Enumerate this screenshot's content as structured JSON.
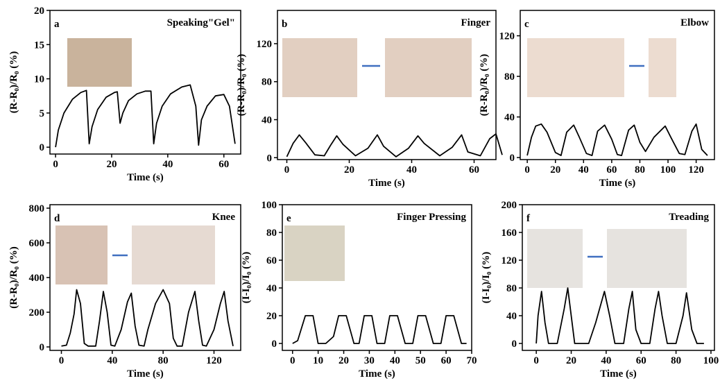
{
  "chart_data": [
    {
      "type": "line",
      "panel": "a",
      "title": "Speaking\"Gel\"",
      "xlabel": "Time (s)",
      "ylabel": "(R-R₀)/R₀ (%)",
      "color": "#000000",
      "x": [
        0,
        1,
        3,
        6,
        9,
        11,
        12,
        13,
        15,
        18,
        21,
        22,
        23,
        24,
        26,
        29,
        32,
        34,
        35,
        36,
        38,
        41,
        45,
        48,
        50,
        51,
        52,
        54,
        57,
        60,
        62,
        64
      ],
      "values": [
        0,
        2.5,
        5,
        7,
        8,
        8.3,
        0.5,
        3,
        5.5,
        7.3,
        8,
        8.1,
        3.5,
        5,
        6.8,
        7.8,
        8.2,
        8.2,
        0.5,
        3.5,
        6,
        7.8,
        8.8,
        9.1,
        6,
        0.3,
        4,
        6,
        7.5,
        7.7,
        6,
        0.5
      ],
      "xlim": [
        -2,
        66
      ],
      "ylim": [
        -1,
        20
      ],
      "xticks": [
        0,
        20,
        40,
        60
      ],
      "yticks": [
        0,
        5,
        10,
        15,
        20
      ]
    },
    {
      "type": "line",
      "panel": "b",
      "title": "Finger",
      "xlabel": "Time (s)",
      "ylabel": "(R-R₀)/R₀ (%)",
      "color": "#000000",
      "x": [
        0,
        2,
        4,
        6,
        9,
        12,
        14,
        16,
        18,
        22,
        26,
        29,
        31,
        35,
        39,
        42,
        44,
        49,
        53,
        56,
        58,
        62,
        65,
        67,
        69
      ],
      "values": [
        1,
        15,
        24,
        16,
        3,
        2,
        13,
        23,
        14,
        2,
        10,
        24,
        12,
        1,
        10,
        23,
        15,
        2,
        11,
        24,
        6,
        2,
        20,
        25,
        3
      ],
      "xlim": [
        -3,
        67
      ],
      "ylim": [
        -2,
        155
      ],
      "xticks": [
        0,
        20,
        40,
        60
      ],
      "yticks": [
        0,
        40,
        80,
        120
      ]
    },
    {
      "type": "line",
      "panel": "c",
      "title": "Elbow",
      "xlabel": "Time (s)",
      "ylabel": "(R-R₀)/R₀ (%)",
      "color": "#000000",
      "x": [
        0,
        3,
        6,
        10,
        14,
        20,
        24,
        28,
        33,
        37,
        42,
        46,
        50,
        55,
        60,
        64,
        67,
        72,
        76,
        80,
        84,
        90,
        98,
        102,
        108,
        112,
        117,
        120,
        124,
        128
      ],
      "values": [
        2,
        20,
        31,
        33,
        25,
        5,
        2,
        25,
        32,
        20,
        4,
        2,
        26,
        32,
        18,
        3,
        2,
        27,
        32,
        15,
        6,
        20,
        31,
        20,
        4,
        3,
        26,
        33,
        8,
        2
      ],
      "xlim": [
        -5,
        133
      ],
      "ylim": [
        -2,
        145
      ],
      "xticks": [
        0,
        20,
        40,
        60,
        80,
        100,
        120
      ],
      "yticks": [
        0,
        40,
        80,
        120
      ]
    },
    {
      "type": "line",
      "panel": "d",
      "title": "Knee",
      "xlabel": "Time (s)",
      "ylabel": "(R-R₀)/R₀ (%)",
      "color": "#000000",
      "x": [
        0,
        4,
        7,
        10,
        12,
        15,
        18,
        21,
        27,
        30,
        33,
        36,
        39,
        42,
        47,
        52,
        55,
        58,
        61,
        65,
        68,
        74,
        80,
        85,
        88,
        91,
        95,
        100,
        105,
        108,
        111,
        114,
        120,
        125,
        128,
        131,
        135
      ],
      "values": [
        5,
        10,
        80,
        190,
        330,
        250,
        20,
        5,
        5,
        150,
        320,
        200,
        10,
        5,
        100,
        260,
        310,
        120,
        10,
        5,
        100,
        250,
        330,
        250,
        50,
        5,
        5,
        200,
        320,
        150,
        10,
        5,
        100,
        250,
        320,
        150,
        5
      ],
      "xlim": [
        -9,
        141
      ],
      "ylim": [
        -20,
        820
      ],
      "xticks": [
        0,
        40,
        80,
        120
      ],
      "yticks": [
        0,
        200,
        400,
        600,
        800
      ]
    },
    {
      "type": "line",
      "panel": "e",
      "title": "Finger Pressing",
      "xlabel": "Time (s)",
      "ylabel": "(I-I₀)/I₀ (%)",
      "color": "#000000",
      "x": [
        0,
        2,
        5,
        8,
        10,
        13,
        16,
        18,
        21,
        24,
        26,
        28,
        31,
        33,
        36,
        38,
        41,
        44,
        47,
        49,
        52,
        55,
        58,
        60,
        63,
        66,
        68
      ],
      "values": [
        0,
        2,
        20,
        20,
        0,
        0,
        5,
        20,
        20,
        0,
        0,
        20,
        20,
        0,
        0,
        20,
        20,
        0,
        0,
        20,
        20,
        0,
        0,
        20,
        20,
        0,
        0
      ],
      "xlim": [
        -4,
        70
      ],
      "ylim": [
        -5,
        100
      ],
      "xticks": [
        0,
        10,
        20,
        30,
        40,
        50,
        60,
        70
      ],
      "yticks": [
        0,
        20,
        40,
        60,
        80,
        100
      ]
    },
    {
      "type": "line",
      "panel": "f",
      "title": "Treading",
      "xlabel": "Time (s)",
      "ylabel": "(I-I₀)/I₀ (%)",
      "color": "#000000",
      "x": [
        0,
        1,
        3,
        5,
        7,
        12,
        16,
        18,
        20,
        22,
        30,
        34,
        39,
        42,
        45,
        50,
        53,
        55,
        57,
        60,
        65,
        68,
        70,
        72,
        75,
        80,
        84,
        86,
        89,
        92,
        96
      ],
      "values": [
        0,
        40,
        75,
        30,
        0,
        0,
        50,
        80,
        40,
        0,
        0,
        30,
        75,
        40,
        0,
        0,
        50,
        75,
        20,
        0,
        0,
        50,
        75,
        40,
        0,
        0,
        40,
        73,
        20,
        0,
        0
      ],
      "xlim": [
        -8,
        102
      ],
      "ylim": [
        -10,
        200
      ],
      "xticks": [
        0,
        20,
        40,
        60,
        80,
        100
      ],
      "yticks": [
        0,
        40,
        80,
        120,
        160,
        200
      ]
    }
  ]
}
